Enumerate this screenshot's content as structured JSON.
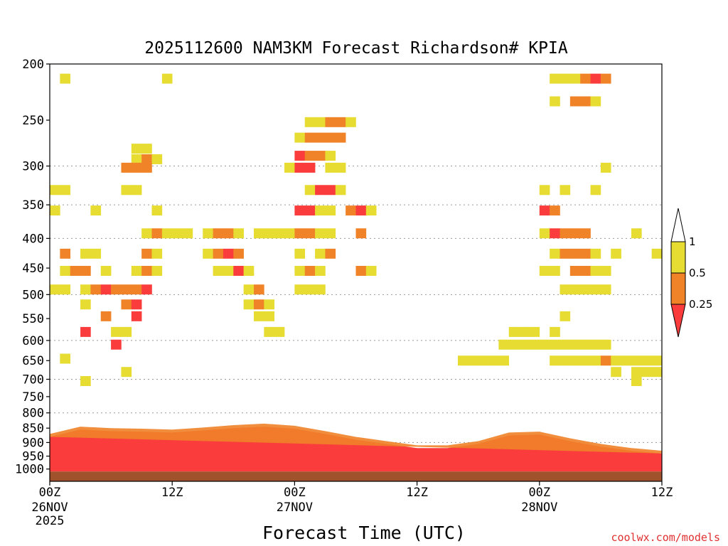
{
  "chart_data": {
    "type": "heatmap",
    "title": "2025112600 NAM3KM Forecast Richardson# KPIA",
    "xlabel": "Forecast Time (UTC)",
    "ylabel": "",
    "y_scale": "log",
    "y_inverted": true,
    "ylim": [
      1050,
      200
    ],
    "xlim_hours": [
      0,
      60
    ],
    "y_ticks": [
      200,
      250,
      300,
      350,
      400,
      450,
      500,
      550,
      600,
      650,
      700,
      750,
      800,
      850,
      900,
      950,
      1000
    ],
    "y_gridlines": [
      300,
      350,
      400,
      500,
      600,
      700,
      800,
      900
    ],
    "x_ticks": [
      {
        "hour": 0,
        "line1": "00Z",
        "line2": "26NOV",
        "line3": "2025"
      },
      {
        "hour": 12,
        "line1": "12Z",
        "line2": "",
        "line3": ""
      },
      {
        "hour": 24,
        "line1": "00Z",
        "line2": "27NOV",
        "line3": ""
      },
      {
        "hour": 36,
        "line1": "12Z",
        "line2": "",
        "line3": ""
      },
      {
        "hour": 48,
        "line1": "00Z",
        "line2": "28NOV",
        "line3": ""
      },
      {
        "hour": 60,
        "line1": "12Z",
        "line2": "",
        "line3": ""
      }
    ],
    "legend": {
      "placement": "right",
      "levels": [
        "1",
        "0.5",
        "0.25"
      ],
      "classes": [
        {
          "range": "> 1",
          "color": "#ffffff"
        },
        {
          "range": "0.5 - 1",
          "color": "#e6dc32"
        },
        {
          "range": "0.25 - 0.5",
          "color": "#f08228"
        },
        {
          "range": "< 0.25",
          "color": "#fa3c3c"
        }
      ]
    },
    "colors": {
      "yellow": "#e6dc32",
      "orange": "#f08228",
      "red": "#fa3c3c",
      "ground": "#a0522d"
    },
    "ground_below_hpa": 1010,
    "cells": [
      [
        "y",
        1.5,
        212
      ],
      [
        "y",
        11.5,
        212
      ],
      [
        "y",
        49.5,
        212
      ],
      [
        "y",
        50.5,
        212
      ],
      [
        "y",
        51.5,
        212
      ],
      [
        "o",
        52.5,
        212
      ],
      [
        "r",
        53.5,
        212
      ],
      [
        "o",
        54.5,
        212
      ],
      [
        "y",
        49.5,
        232
      ],
      [
        "o",
        51.5,
        232
      ],
      [
        "o",
        52.5,
        232
      ],
      [
        "y",
        53.5,
        232
      ],
      [
        "y",
        25.5,
        252
      ],
      [
        "y",
        26.5,
        252
      ],
      [
        "o",
        27.5,
        252
      ],
      [
        "o",
        28.5,
        252
      ],
      [
        "y",
        29.5,
        252
      ],
      [
        "y",
        24.5,
        268
      ],
      [
        "o",
        25.5,
        268
      ],
      [
        "o",
        26.5,
        268
      ],
      [
        "o",
        27.5,
        268
      ],
      [
        "o",
        28.5,
        268
      ],
      [
        "y",
        8.5,
        280
      ],
      [
        "y",
        9.5,
        280
      ],
      [
        "r",
        24.5,
        288
      ],
      [
        "o",
        25.5,
        288
      ],
      [
        "o",
        26.5,
        288
      ],
      [
        "y",
        27.5,
        288
      ],
      [
        "y",
        8.5,
        292
      ],
      [
        "o",
        9.5,
        292
      ],
      [
        "y",
        10.5,
        292
      ],
      [
        "o",
        7.5,
        302
      ],
      [
        "o",
        8.5,
        302
      ],
      [
        "o",
        9.5,
        302
      ],
      [
        "y",
        23.5,
        302
      ],
      [
        "r",
        24.5,
        302
      ],
      [
        "r",
        25.5,
        302
      ],
      [
        "y",
        27.5,
        302
      ],
      [
        "y",
        28.5,
        302
      ],
      [
        "y",
        54.5,
        302
      ],
      [
        "y",
        0.5,
        330
      ],
      [
        "y",
        1.5,
        330
      ],
      [
        "y",
        7.5,
        330
      ],
      [
        "y",
        8.5,
        330
      ],
      [
        "y",
        25.5,
        330
      ],
      [
        "r",
        26.5,
        330
      ],
      [
        "r",
        27.5,
        330
      ],
      [
        "y",
        28.5,
        330
      ],
      [
        "y",
        48.5,
        330
      ],
      [
        "y",
        50.5,
        330
      ],
      [
        "y",
        53.5,
        330
      ],
      [
        "y",
        0.5,
        358
      ],
      [
        "y",
        4.5,
        358
      ],
      [
        "y",
        10.5,
        358
      ],
      [
        "r",
        24.5,
        358
      ],
      [
        "r",
        25.5,
        358
      ],
      [
        "y",
        26.5,
        358
      ],
      [
        "y",
        27.5,
        358
      ],
      [
        "o",
        29.5,
        358
      ],
      [
        "r",
        30.5,
        358
      ],
      [
        "y",
        31.5,
        358
      ],
      [
        "r",
        48.5,
        358
      ],
      [
        "o",
        49.5,
        358
      ],
      [
        "y",
        9.5,
        392
      ],
      [
        "o",
        10.5,
        392
      ],
      [
        "y",
        11.5,
        392
      ],
      [
        "y",
        12.5,
        392
      ],
      [
        "y",
        13.5,
        392
      ],
      [
        "y",
        15.5,
        392
      ],
      [
        "o",
        16.5,
        392
      ],
      [
        "o",
        17.5,
        392
      ],
      [
        "y",
        18.5,
        392
      ],
      [
        "y",
        20.5,
        392
      ],
      [
        "y",
        21.5,
        392
      ],
      [
        "y",
        22.5,
        392
      ],
      [
        "y",
        23.5,
        392
      ],
      [
        "o",
        24.5,
        392
      ],
      [
        "o",
        25.5,
        392
      ],
      [
        "y",
        26.5,
        392
      ],
      [
        "y",
        27.5,
        392
      ],
      [
        "o",
        30.5,
        392
      ],
      [
        "y",
        48.5,
        392
      ],
      [
        "r",
        49.5,
        392
      ],
      [
        "o",
        50.5,
        392
      ],
      [
        "o",
        51.5,
        392
      ],
      [
        "o",
        52.5,
        392
      ],
      [
        "y",
        57.5,
        392
      ],
      [
        "o",
        1.5,
        425
      ],
      [
        "y",
        3.5,
        425
      ],
      [
        "y",
        4.5,
        425
      ],
      [
        "o",
        9.5,
        425
      ],
      [
        "y",
        10.5,
        425
      ],
      [
        "y",
        15.5,
        425
      ],
      [
        "o",
        16.5,
        425
      ],
      [
        "r",
        17.5,
        425
      ],
      [
        "o",
        18.5,
        425
      ],
      [
        "y",
        24.5,
        425
      ],
      [
        "y",
        26.5,
        425
      ],
      [
        "o",
        27.5,
        425
      ],
      [
        "y",
        49.5,
        425
      ],
      [
        "o",
        50.5,
        425
      ],
      [
        "o",
        51.5,
        425
      ],
      [
        "o",
        52.5,
        425
      ],
      [
        "y",
        53.5,
        425
      ],
      [
        "y",
        55.5,
        425
      ],
      [
        "y",
        59.5,
        425
      ],
      [
        "y",
        1.5,
        455
      ],
      [
        "o",
        2.5,
        455
      ],
      [
        "o",
        3.5,
        455
      ],
      [
        "y",
        5.5,
        455
      ],
      [
        "y",
        8.5,
        455
      ],
      [
        "o",
        9.5,
        455
      ],
      [
        "y",
        10.5,
        455
      ],
      [
        "y",
        16.5,
        455
      ],
      [
        "y",
        17.5,
        455
      ],
      [
        "r",
        18.5,
        455
      ],
      [
        "y",
        19.5,
        455
      ],
      [
        "y",
        24.5,
        455
      ],
      [
        "o",
        25.5,
        455
      ],
      [
        "y",
        26.5,
        455
      ],
      [
        "o",
        30.5,
        455
      ],
      [
        "y",
        31.5,
        455
      ],
      [
        "y",
        48.5,
        455
      ],
      [
        "y",
        49.5,
        455
      ],
      [
        "o",
        51.5,
        455
      ],
      [
        "o",
        52.5,
        455
      ],
      [
        "y",
        53.5,
        455
      ],
      [
        "y",
        54.5,
        455
      ],
      [
        "y",
        0.5,
        490
      ],
      [
        "y",
        1.5,
        490
      ],
      [
        "y",
        3.5,
        490
      ],
      [
        "o",
        4.5,
        490
      ],
      [
        "r",
        5.5,
        490
      ],
      [
        "o",
        6.5,
        490
      ],
      [
        "o",
        7.5,
        490
      ],
      [
        "o",
        8.5,
        490
      ],
      [
        "r",
        9.5,
        490
      ],
      [
        "y",
        19.5,
        490
      ],
      [
        "o",
        20.5,
        490
      ],
      [
        "y",
        24.5,
        490
      ],
      [
        "y",
        25.5,
        490
      ],
      [
        "y",
        26.5,
        490
      ],
      [
        "y",
        50.5,
        490
      ],
      [
        "y",
        51.5,
        490
      ],
      [
        "y",
        52.5,
        490
      ],
      [
        "y",
        53.5,
        490
      ],
      [
        "y",
        54.5,
        490
      ],
      [
        "y",
        3.5,
        520
      ],
      [
        "o",
        7.5,
        520
      ],
      [
        "r",
        8.5,
        520
      ],
      [
        "y",
        19.5,
        520
      ],
      [
        "o",
        20.5,
        520
      ],
      [
        "y",
        21.5,
        520
      ],
      [
        "o",
        5.5,
        545
      ],
      [
        "r",
        8.5,
        545
      ],
      [
        "y",
        20.5,
        545
      ],
      [
        "y",
        21.5,
        545
      ],
      [
        "y",
        50.5,
        545
      ],
      [
        "r",
        3.5,
        580
      ],
      [
        "y",
        6.5,
        580
      ],
      [
        "y",
        7.5,
        580
      ],
      [
        "y",
        21.5,
        580
      ],
      [
        "y",
        22.5,
        580
      ],
      [
        "y",
        45.5,
        580
      ],
      [
        "y",
        46.5,
        580
      ],
      [
        "y",
        47.5,
        580
      ],
      [
        "y",
        49.5,
        580
      ],
      [
        "r",
        6.5,
        610
      ],
      [
        "y",
        44.5,
        610
      ],
      [
        "y",
        45.5,
        610
      ],
      [
        "y",
        46.5,
        610
      ],
      [
        "y",
        47.5,
        610
      ],
      [
        "y",
        48.5,
        610
      ],
      [
        "y",
        49.5,
        610
      ],
      [
        "y",
        50.5,
        610
      ],
      [
        "y",
        51.5,
        610
      ],
      [
        "y",
        52.5,
        610
      ],
      [
        "y",
        53.5,
        610
      ],
      [
        "y",
        54.5,
        610
      ],
      [
        "y",
        40.5,
        650
      ],
      [
        "y",
        41.5,
        650
      ],
      [
        "y",
        42.5,
        650
      ],
      [
        "y",
        43.5,
        650
      ],
      [
        "y",
        44.5,
        650
      ],
      [
        "y",
        49.5,
        650
      ],
      [
        "y",
        50.5,
        650
      ],
      [
        "y",
        51.5,
        650
      ],
      [
        "y",
        52.5,
        650
      ],
      [
        "y",
        53.5,
        650
      ],
      [
        "o",
        54.5,
        650
      ],
      [
        "y",
        55.5,
        650
      ],
      [
        "y",
        56.5,
        650
      ],
      [
        "y",
        57.5,
        650
      ],
      [
        "y",
        58.5,
        650
      ],
      [
        "y",
        59.5,
        650
      ],
      [
        "y",
        1.5,
        645
      ],
      [
        "y",
        7.5,
        680
      ],
      [
        "y",
        55.5,
        680
      ],
      [
        "y",
        57.5,
        680
      ],
      [
        "y",
        58.5,
        680
      ],
      [
        "y",
        59.5,
        680
      ],
      [
        "y",
        3.5,
        705
      ],
      [
        "y",
        57.5,
        705
      ]
    ],
    "boundary_layer": {
      "hours": [
        0,
        3,
        6,
        9,
        12,
        15,
        18,
        21,
        24,
        27,
        30,
        33,
        36,
        39,
        42,
        45,
        48,
        51,
        54,
        57,
        60
      ],
      "top_hpa": [
        880,
        855,
        860,
        862,
        865,
        858,
        850,
        845,
        852,
        870,
        890,
        905,
        920,
        920,
        905,
        875,
        872,
        895,
        915,
        930,
        940
      ]
    }
  },
  "credit": "coolwx.com/models"
}
